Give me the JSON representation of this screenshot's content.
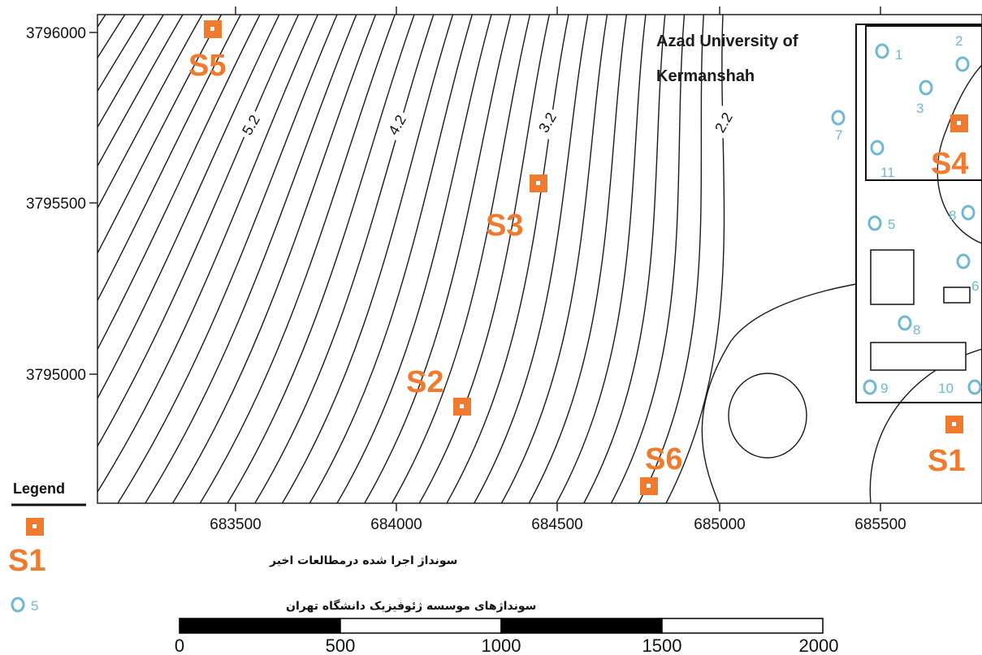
{
  "map": {
    "university_label_line1": "Azad University of",
    "university_label_line2": "Kermanshah",
    "x_ticks": [
      "683500",
      "684000",
      "684500",
      "685000",
      "685500"
    ],
    "y_ticks": [
      "3796000",
      "3795500",
      "3795000"
    ],
    "contour_labels": [
      "5.2",
      "4.2",
      "3.2",
      "2.2"
    ],
    "sites": [
      {
        "id": "S1",
        "label": "S1"
      },
      {
        "id": "S2",
        "label": "S2"
      },
      {
        "id": "S3",
        "label": "S3"
      },
      {
        "id": "S4",
        "label": "S4"
      },
      {
        "id": "S5",
        "label": "S5"
      },
      {
        "id": "S6",
        "label": "S6"
      }
    ],
    "boreholes": [
      "1",
      "2",
      "3",
      "5",
      "6",
      "7",
      "8",
      "8",
      "9",
      "10",
      "11"
    ],
    "colors": {
      "site_marker": "#f07a2e",
      "borehole_marker": "#6fb8d2",
      "contour": "#1a1a1a"
    }
  },
  "legend": {
    "title": "Legend",
    "site_symbol_label": "S1",
    "site_description": "سونداژ اجرا شده درمطالعات اخیر",
    "borehole_symbol_label": "5",
    "borehole_description": "سونداژهای موسسه ژئوفیزیک دانشگاه تهران"
  },
  "scale_bar": {
    "labels": [
      "0",
      "500",
      "1000",
      "1500",
      "2000"
    ]
  }
}
